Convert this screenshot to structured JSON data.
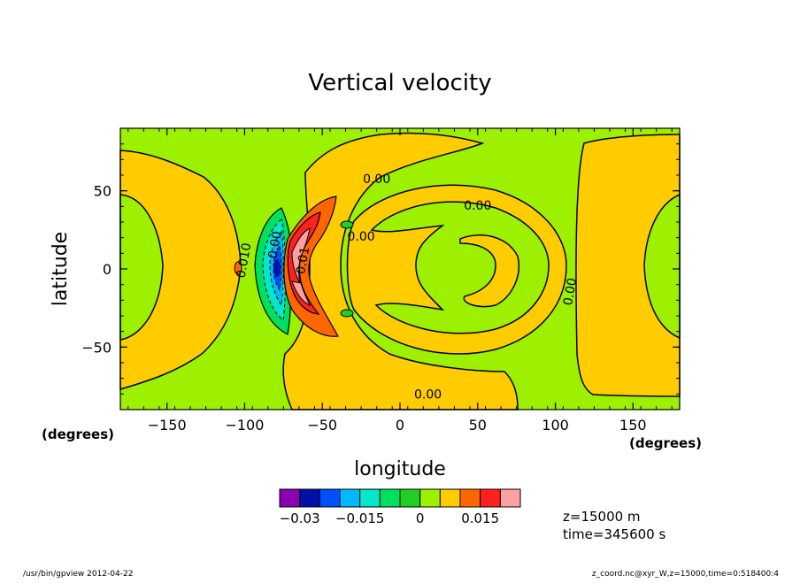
{
  "chart_data": {
    "type": "heatmap",
    "subtype": "filled contour map",
    "title": "Vertical velocity",
    "xlabel": "longitude",
    "ylabel": "latitude",
    "x_unit_label": "(degrees)",
    "y_unit_label": "(degrees)",
    "xlim": [
      -180,
      180
    ],
    "ylim": [
      -90,
      90
    ],
    "x_ticks": [
      {
        "value": -150,
        "label": "−150"
      },
      {
        "value": -100,
        "label": "−100"
      },
      {
        "value": -50,
        "label": "−50"
      },
      {
        "value": 0,
        "label": "0"
      },
      {
        "value": 50,
        "label": "50"
      },
      {
        "value": 100,
        "label": "100"
      },
      {
        "value": 150,
        "label": "150"
      }
    ],
    "y_ticks": [
      {
        "value": 50,
        "label": "50"
      },
      {
        "value": 0,
        "label": "0"
      },
      {
        "value": -50,
        "label": "−50"
      }
    ],
    "colorbar": {
      "colors": [
        "#8b00b0",
        "#0010a8",
        "#0050ff",
        "#00b8ff",
        "#00e8c8",
        "#00e060",
        "#20d020",
        "#9cf000",
        "#ffcc00",
        "#ff6600",
        "#ff2020",
        "#ffa0a0"
      ],
      "labels": [
        {
          "value": -0.03,
          "label": "−0.03"
        },
        {
          "value": -0.015,
          "label": "−0.015"
        },
        {
          "value": 0,
          "label": "0"
        },
        {
          "value": 0.015,
          "label": "0.015"
        }
      ]
    },
    "background_color": "#9cf000",
    "contour_labels": [
      {
        "text": "0.00",
        "lon": -15,
        "lat": 55
      },
      {
        "text": "0.00",
        "lon": 50,
        "lat": 38
      },
      {
        "text": "0.00",
        "lon": -25,
        "lat": 18
      },
      {
        "text": "0.00",
        "lon": 112,
        "lat": -15
      },
      {
        "text": "0.00",
        "lon": 18,
        "lat": -83
      },
      {
        "text": "0.00",
        "lon": -78,
        "lat": 15
      },
      {
        "text": "0.01",
        "lon": -60,
        "lat": 5
      },
      {
        "text": "0.010",
        "lon": -98,
        "lat": 5
      }
    ],
    "info": {
      "z": "z=15000  m",
      "time": "time=345600  s"
    }
  },
  "footer": {
    "left": "/usr/bin/gpview   2012-04-22",
    "right": "z_coord.nc@xyr_W,z=15000,time=0:518400:4"
  }
}
